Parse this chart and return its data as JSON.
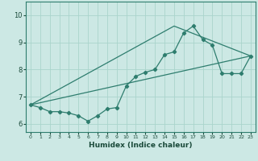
{
  "title": "",
  "xlabel": "Humidex (Indice chaleur)",
  "ylabel": "",
  "bg_color": "#cce8e4",
  "grid_color": "#aad4cc",
  "line_color": "#2e7d6e",
  "xlim": [
    -0.5,
    23.5
  ],
  "ylim": [
    5.7,
    10.5
  ],
  "yticks": [
    6,
    7,
    8,
    9,
    10
  ],
  "xticks": [
    0,
    1,
    2,
    3,
    4,
    5,
    6,
    7,
    8,
    9,
    10,
    11,
    12,
    13,
    14,
    15,
    16,
    17,
    18,
    19,
    20,
    21,
    22,
    23
  ],
  "line1_x": [
    0,
    1,
    2,
    3,
    4,
    5,
    6,
    7,
    8,
    9,
    10,
    11,
    12,
    13,
    14,
    15,
    16,
    17,
    18,
    19,
    20,
    21,
    22,
    23
  ],
  "line1_y": [
    6.7,
    6.6,
    6.45,
    6.45,
    6.4,
    6.3,
    6.1,
    6.3,
    6.55,
    6.6,
    7.4,
    7.75,
    7.9,
    8.0,
    8.55,
    8.65,
    9.35,
    9.6,
    9.1,
    8.9,
    7.85,
    7.85,
    7.85,
    8.5
  ],
  "line2_x": [
    0,
    23
  ],
  "line2_y": [
    6.7,
    8.5
  ],
  "line3_x": [
    0,
    15,
    23
  ],
  "line3_y": [
    6.7,
    9.6,
    8.5
  ]
}
